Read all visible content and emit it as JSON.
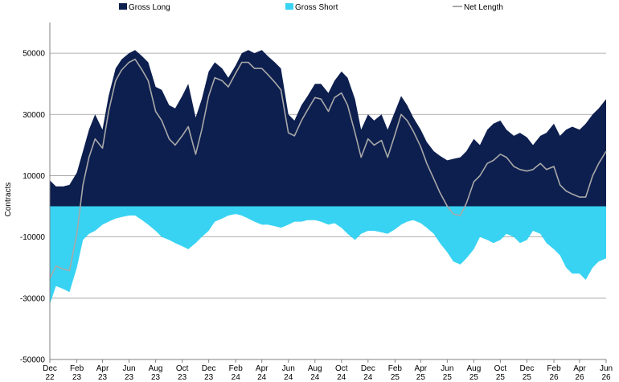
{
  "chart_data": {
    "type": "area",
    "ylabel": "Contracts",
    "ylim": [
      -50000,
      60000
    ],
    "yticks": [
      50000,
      30000,
      10000,
      -10000,
      -30000,
      -50000
    ],
    "ytick_labels": [
      "50000",
      "30000",
      "10000",
      "-10000",
      "-30000",
      "-50000"
    ],
    "xlim": [
      "2022-12-01",
      "2026-06-01"
    ],
    "xticks": [
      "2022-12-01",
      "2023-02-01",
      "2023-04-01",
      "2023-06-01",
      "2023-08-01",
      "2023-10-01",
      "2023-12-01",
      "2024-02-01",
      "2024-04-01",
      "2024-06-01",
      "2024-08-01",
      "2024-10-01",
      "2024-12-01",
      "2025-02-01",
      "2025-04-01",
      "2025-06-01",
      "2025-08-01",
      "2025-10-01",
      "2025-12-01",
      "2026-02-01",
      "2026-04-01",
      "2026-06-01"
    ],
    "xtick_labels": [
      [
        "Dec",
        "22"
      ],
      [
        "Feb",
        "23"
      ],
      [
        "Apr",
        "23"
      ],
      [
        "Jun",
        "23"
      ],
      [
        "Aug",
        "23"
      ],
      [
        "Oct",
        "23"
      ],
      [
        "Dec",
        "23"
      ],
      [
        "Feb",
        "24"
      ],
      [
        "Apr",
        "24"
      ],
      [
        "Jun",
        "24"
      ],
      [
        "Aug",
        "24"
      ],
      [
        "Oct",
        "24"
      ],
      [
        "Dec",
        "24"
      ],
      [
        "Feb",
        "25"
      ],
      [
        "Apr",
        "25"
      ],
      [
        "Jun",
        "25"
      ],
      [
        "Aug",
        "25"
      ],
      [
        "Oct",
        "25"
      ],
      [
        "Dec",
        "25"
      ],
      [
        "Feb",
        "26"
      ],
      [
        "Apr",
        "26"
      ],
      [
        "Jun",
        "26"
      ]
    ],
    "grid": true,
    "legend_position": "top",
    "legend": [
      {
        "name": "Gross Long",
        "color": "#0d1f4f",
        "marker": "square"
      },
      {
        "name": "Gross Short",
        "color": "#38d3f2",
        "marker": "square"
      },
      {
        "name": "Net Length",
        "color": "#a8a8a8",
        "marker": "line"
      }
    ],
    "x": [
      "2022-12-01",
      "2022-12-15",
      "2023-01-01",
      "2023-01-15",
      "2023-02-01",
      "2023-02-15",
      "2023-03-01",
      "2023-03-15",
      "2023-04-01",
      "2023-04-15",
      "2023-05-01",
      "2023-05-15",
      "2023-06-01",
      "2023-06-15",
      "2023-07-01",
      "2023-07-15",
      "2023-08-01",
      "2023-08-15",
      "2023-09-01",
      "2023-09-15",
      "2023-10-01",
      "2023-10-15",
      "2023-11-01",
      "2023-11-15",
      "2023-12-01",
      "2023-12-15",
      "2024-01-01",
      "2024-01-15",
      "2024-02-01",
      "2024-02-15",
      "2024-03-01",
      "2024-03-15",
      "2024-04-01",
      "2024-04-15",
      "2024-05-01",
      "2024-05-15",
      "2024-06-01",
      "2024-06-15",
      "2024-07-01",
      "2024-07-15",
      "2024-08-01",
      "2024-08-15",
      "2024-09-01",
      "2024-09-15",
      "2024-10-01",
      "2024-10-15",
      "2024-11-01",
      "2024-11-15",
      "2024-12-01",
      "2024-12-15",
      "2025-01-01",
      "2025-01-15",
      "2025-02-01",
      "2025-02-15",
      "2025-03-01",
      "2025-03-15",
      "2025-04-01",
      "2025-04-15",
      "2025-05-01",
      "2025-05-15",
      "2025-06-01",
      "2025-06-15",
      "2025-07-01",
      "2025-07-15",
      "2025-08-01",
      "2025-08-15",
      "2025-09-01",
      "2025-09-15",
      "2025-10-01",
      "2025-10-15",
      "2025-11-01",
      "2025-11-15",
      "2025-12-01",
      "2025-12-15",
      "2026-01-01",
      "2026-01-15",
      "2026-02-01",
      "2026-02-15",
      "2026-03-01",
      "2026-03-15",
      "2026-04-01",
      "2026-04-15",
      "2026-05-01",
      "2026-05-15",
      "2026-06-01"
    ],
    "series": [
      {
        "name": "Gross Long",
        "color": "#0d1f4f",
        "values": [
          8500,
          6500,
          6500,
          7000,
          11000,
          18000,
          25000,
          30000,
          25000,
          36000,
          45000,
          48000,
          50000,
          51000,
          49000,
          47000,
          39000,
          38000,
          33000,
          32000,
          36000,
          40000,
          29000,
          35000,
          44000,
          47000,
          45000,
          42000,
          46000,
          50000,
          51000,
          50000,
          51000,
          49000,
          47000,
          45000,
          30000,
          28000,
          33000,
          36000,
          40000,
          40000,
          37000,
          41000,
          44000,
          42000,
          35000,
          25000,
          30000,
          28000,
          30000,
          25000,
          31000,
          36000,
          33000,
          29000,
          25000,
          21000,
          18000,
          16500,
          15000,
          15500,
          16000,
          18000,
          22000,
          20000,
          25000,
          27000,
          28000,
          25000,
          23000,
          24000,
          22500,
          20000,
          23000,
          24000,
          27000,
          23000,
          25000,
          26000,
          25000,
          27000,
          30000,
          32000,
          35000
        ]
      },
      {
        "name": "Gross Short",
        "color": "#38d3f2",
        "values": [
          -32000,
          -26000,
          -27000,
          -28000,
          -20000,
          -11000,
          -9000,
          -8000,
          -6000,
          -5000,
          -4000,
          -3500,
          -3000,
          -3000,
          -4500,
          -6000,
          -8000,
          -10000,
          -11000,
          -12000,
          -13000,
          -14000,
          -12000,
          -10000,
          -8000,
          -5000,
          -4000,
          -3000,
          -2500,
          -3000,
          -4000,
          -5000,
          -6000,
          -6000,
          -6500,
          -7000,
          -6000,
          -5000,
          -5000,
          -4500,
          -4500,
          -5000,
          -6000,
          -5500,
          -7000,
          -9000,
          -11000,
          -9000,
          -8000,
          -8000,
          -8500,
          -9000,
          -7500,
          -6000,
          -5000,
          -4500,
          -5500,
          -7000,
          -9000,
          -12000,
          -15000,
          -18000,
          -19000,
          -17000,
          -14000,
          -10000,
          -11000,
          -12000,
          -11000,
          -9000,
          -10000,
          -12000,
          -11000,
          -8000,
          -9000,
          -12000,
          -14000,
          -16000,
          -20000,
          -22000,
          -22000,
          -24000,
          -20000,
          -18000,
          -17000
        ]
      },
      {
        "name": "Net Length",
        "color": "#a8a8a8",
        "values": [
          -23500,
          -19500,
          -20500,
          -21000,
          -9000,
          7000,
          16000,
          22000,
          19000,
          31000,
          41000,
          44500,
          47000,
          48000,
          44500,
          41000,
          31000,
          28000,
          22000,
          20000,
          23000,
          26000,
          17000,
          25000,
          36000,
          42000,
          41000,
          39000,
          43500,
          47000,
          47000,
          45000,
          45000,
          43000,
          40500,
          38000,
          24000,
          23000,
          28000,
          31500,
          35500,
          35000,
          31000,
          35500,
          37000,
          33000,
          24000,
          16000,
          22000,
          20000,
          21500,
          16000,
          23500,
          30000,
          28000,
          24500,
          19500,
          14000,
          9000,
          4500,
          0,
          -2500,
          -3000,
          1000,
          8000,
          10000,
          14000,
          15000,
          17000,
          16000,
          13000,
          12000,
          11500,
          12000,
          14000,
          12000,
          13000,
          7000,
          5000,
          4000,
          3000,
          3000,
          10000,
          14000,
          18000
        ]
      }
    ]
  }
}
